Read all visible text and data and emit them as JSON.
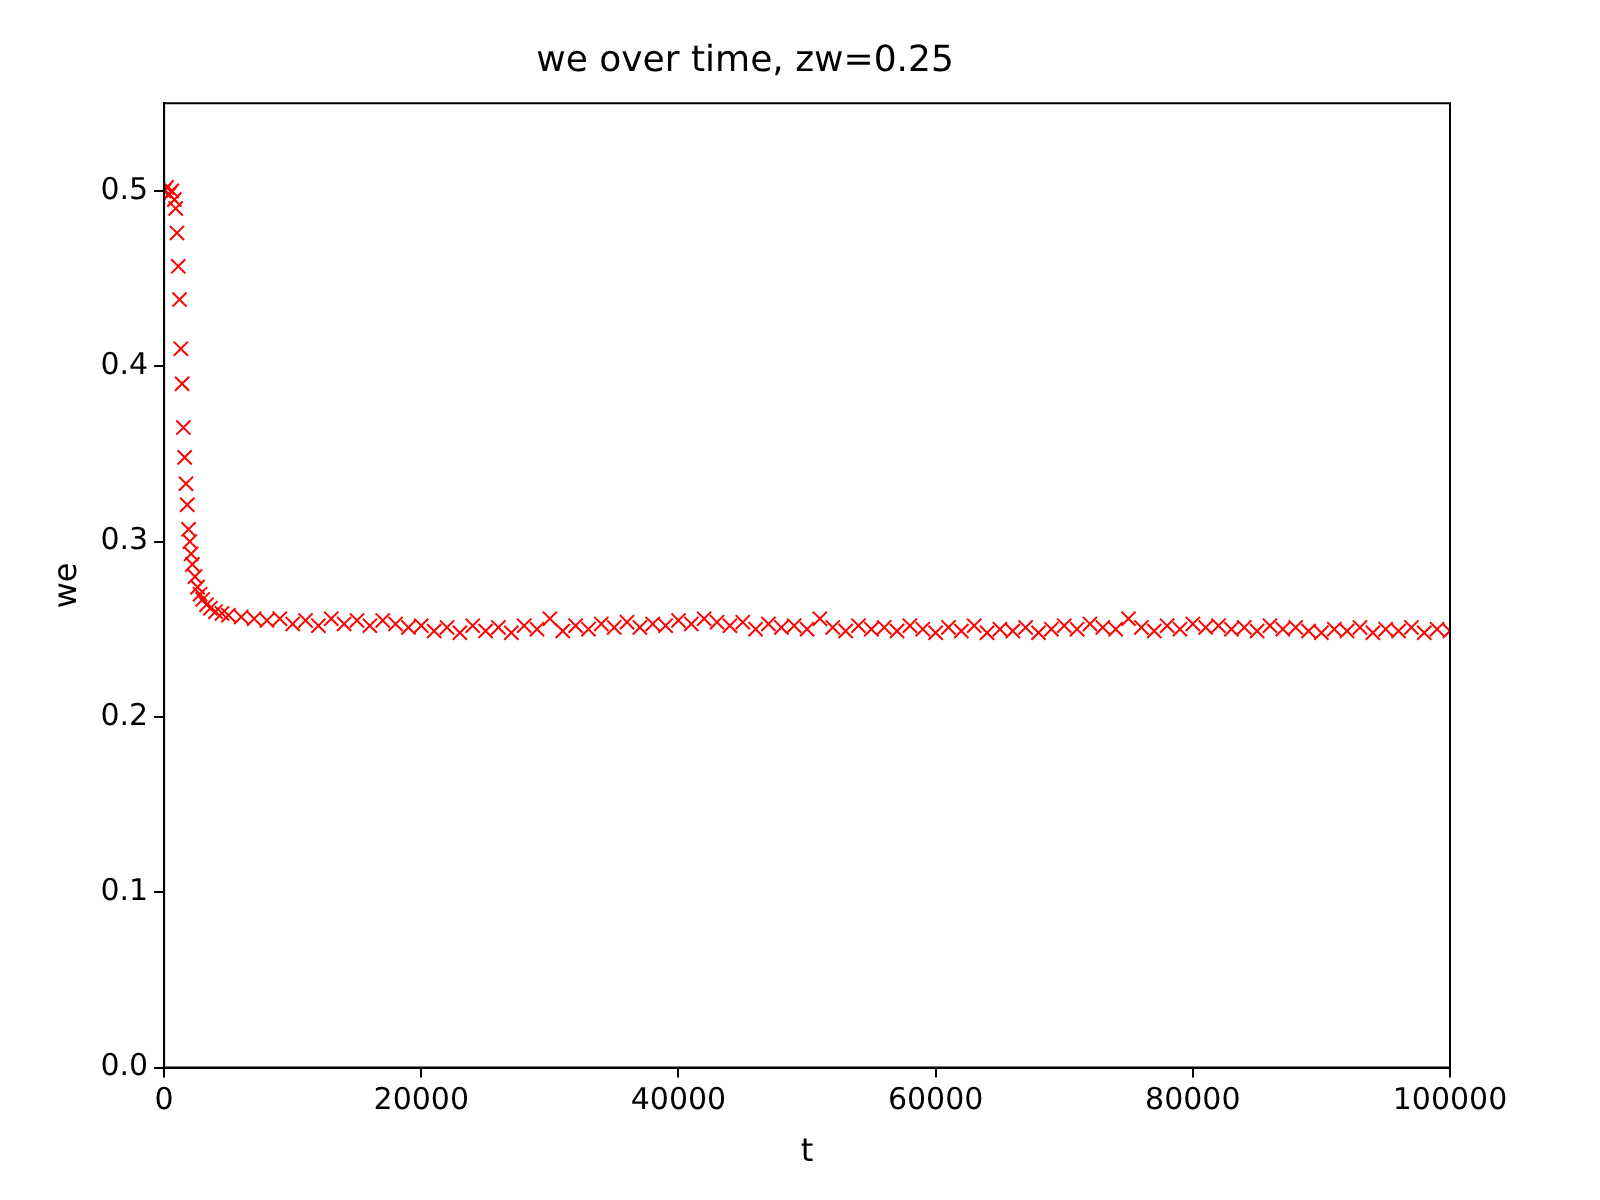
{
  "chart_data": {
    "type": "scatter",
    "title": "we over time, zw=0.25",
    "xlabel": "t",
    "ylabel": "we",
    "marker": "cross",
    "grid": false,
    "legend": false,
    "xlim": [
      0,
      100000
    ],
    "ylim": [
      0,
      0.55
    ],
    "xticks": [
      0,
      20000,
      40000,
      60000,
      80000,
      100000
    ],
    "yticks": [
      {
        "value": 0,
        "label": "0.0"
      },
      0.1,
      0.2,
      0.3,
      0.4,
      0.5
    ],
    "series": [
      {
        "color": "#ff0000",
        "x": [
          0,
          200,
          400,
          600,
          800,
          900,
          1000,
          1100,
          1200,
          1300,
          1400,
          1500,
          1600,
          1700,
          1800,
          1900,
          2000,
          2100,
          2200,
          2400,
          2600,
          2800,
          3000,
          3300,
          3600,
          4000,
          4500,
          5000,
          6000,
          7000,
          8000,
          9000,
          10000,
          11000,
          12000,
          13000,
          14000,
          15000,
          16000,
          17000,
          18000,
          19000,
          20000,
          21000,
          22000,
          23000,
          24000,
          25000,
          26000,
          27000,
          28000,
          29000,
          30000,
          31000,
          32000,
          33000,
          34000,
          35000,
          36000,
          37000,
          38000,
          39000,
          40000,
          41000,
          42000,
          43000,
          44000,
          45000,
          46000,
          47000,
          48000,
          49000,
          50000,
          51000,
          52000,
          53000,
          54000,
          55000,
          56000,
          57000,
          58000,
          59000,
          60000,
          61000,
          62000,
          63000,
          64000,
          65000,
          66000,
          67000,
          68000,
          69000,
          70000,
          71000,
          72000,
          73000,
          74000,
          75000,
          76000,
          77000,
          78000,
          79000,
          80000,
          81000,
          82000,
          83000,
          84000,
          85000,
          86000,
          87000,
          88000,
          89000,
          90000,
          91000,
          92000,
          93000,
          94000,
          95000,
          96000,
          97000,
          98000,
          99000,
          100000
        ],
        "values": [
          0.5,
          0.502,
          0.498,
          0.5,
          0.495,
          0.49,
          0.476,
          0.457,
          0.438,
          0.41,
          0.39,
          0.365,
          0.348,
          0.333,
          0.321,
          0.307,
          0.3,
          0.293,
          0.287,
          0.28,
          0.274,
          0.27,
          0.267,
          0.264,
          0.262,
          0.26,
          0.259,
          0.258,
          0.257,
          0.256,
          0.255,
          0.256,
          0.253,
          0.255,
          0.252,
          0.256,
          0.253,
          0.255,
          0.252,
          0.255,
          0.253,
          0.251,
          0.252,
          0.249,
          0.251,
          0.248,
          0.252,
          0.249,
          0.251,
          0.248,
          0.252,
          0.25,
          0.256,
          0.249,
          0.252,
          0.25,
          0.253,
          0.251,
          0.254,
          0.251,
          0.253,
          0.252,
          0.255,
          0.253,
          0.256,
          0.254,
          0.252,
          0.254,
          0.25,
          0.253,
          0.251,
          0.252,
          0.25,
          0.256,
          0.251,
          0.249,
          0.252,
          0.25,
          0.251,
          0.249,
          0.252,
          0.25,
          0.248,
          0.251,
          0.249,
          0.252,
          0.248,
          0.25,
          0.249,
          0.251,
          0.248,
          0.25,
          0.252,
          0.25,
          0.253,
          0.251,
          0.25,
          0.256,
          0.251,
          0.249,
          0.252,
          0.25,
          0.253,
          0.251,
          0.252,
          0.25,
          0.251,
          0.249,
          0.252,
          0.25,
          0.251,
          0.249,
          0.248,
          0.25,
          0.249,
          0.251,
          0.248,
          0.25,
          0.249,
          0.251,
          0.248,
          0.25,
          0.249
        ]
      }
    ]
  }
}
